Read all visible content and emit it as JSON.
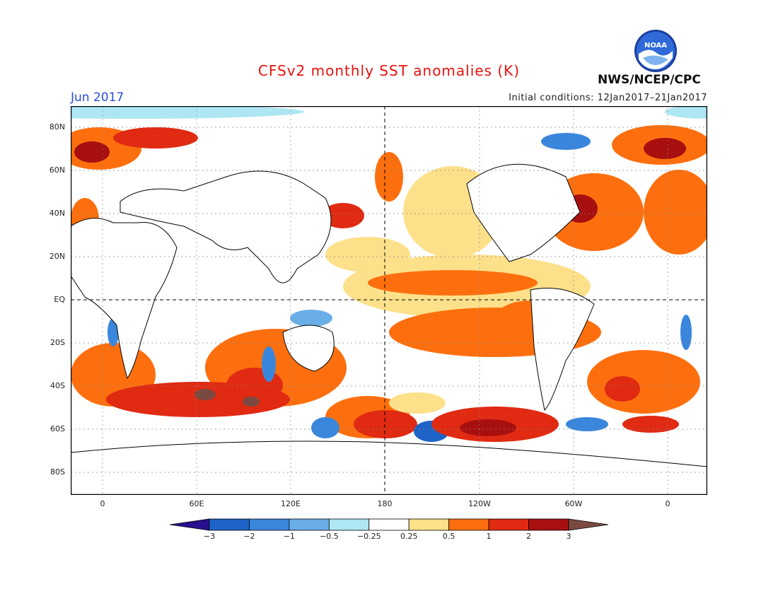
{
  "title": "CFSv2 monthly SST anomalies (K)",
  "month_label": "Jun 2017",
  "initial_conditions": "Initial conditions: 12Jan2017–21Jan2017",
  "agency": "NWS/NCEP/CPC",
  "logo_text": "NOAA",
  "lat_ticks": [
    "80N",
    "60N",
    "40N",
    "20N",
    "EQ",
    "20S",
    "40S",
    "60S",
    "80S"
  ],
  "lon_ticks": [
    "0",
    "60E",
    "120E",
    "180",
    "120W",
    "60W",
    "0"
  ],
  "colorbar": {
    "labels": [
      "−3",
      "−2",
      "−1",
      "−0.5",
      "−0.25",
      "0.25",
      "0.5",
      "1",
      "2",
      "3"
    ],
    "colors": [
      "#2a0f8f",
      "#1e63c8",
      "#3a86dc",
      "#6aaee8",
      "#aee6f3",
      "#ffffff",
      "#fde08a",
      "#fd6f0e",
      "#e02a12",
      "#a80f0f",
      "#7a4a40"
    ]
  },
  "colors": {
    "title": "#e8120e",
    "month": "#2a4bd6",
    "land_bg": "#ffffff"
  }
}
